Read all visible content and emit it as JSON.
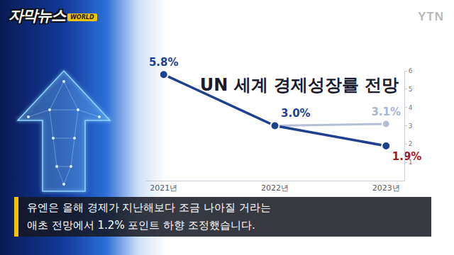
{
  "header": {
    "program": "자막뉴스",
    "tag": "WORLD",
    "channel": "YTN"
  },
  "caption": [
    "유엔은 올해 경제가 지난해보다 조금 나아질 거라는",
    "애초 전망에서 1.2% 포인트 하향 조정했습니다."
  ],
  "chart_data": {
    "type": "line",
    "title": "UN 세계 경제성장률 전망",
    "categories": [
      "2021년",
      "2022년",
      "2023년"
    ],
    "series": [
      {
        "color": "#1f3f8f",
        "values": [
          5.8,
          3.0,
          1.9
        ],
        "value_labels": [
          "5.8%",
          "3.0%",
          "1.9%"
        ]
      },
      {
        "color": "#b4bfd6",
        "values": [
          null,
          3.0,
          3.1
        ],
        "value_labels": [
          null,
          null,
          "3.1%"
        ]
      }
    ],
    "ylim": [
      0,
      6
    ],
    "yticks": [
      1,
      2,
      3,
      4,
      5,
      6
    ],
    "grid": false,
    "data_labels": true,
    "marker": "circle"
  }
}
